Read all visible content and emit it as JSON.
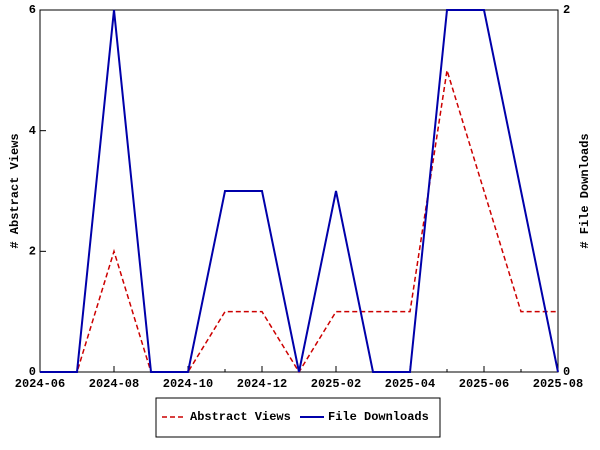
{
  "chart_data": {
    "type": "line",
    "x": [
      "2024-06",
      "2024-07",
      "2024-08",
      "2024-09",
      "2024-10",
      "2024-11",
      "2024-12",
      "2025-01",
      "2025-02",
      "2025-03",
      "2025-04",
      "2025-05",
      "2025-06",
      "2025-07",
      "2025-08"
    ],
    "xticks": [
      "2024-06",
      "2024-08",
      "2024-10",
      "2024-12",
      "2025-02",
      "2025-04",
      "2025-06",
      "2025-08"
    ],
    "ylabel": "# Abstract Views",
    "y2label": "# File Downloads",
    "ylim": [
      0,
      6
    ],
    "yticks": [
      0,
      2,
      4,
      6
    ],
    "y2lim": [
      0,
      2
    ],
    "y2ticks": [
      0,
      2
    ],
    "series": [
      {
        "name": "Abstract Views",
        "color": "#cc0000",
        "dash": true,
        "values": [
          0,
          0,
          2,
          0,
          0,
          1,
          1,
          0,
          1,
          1,
          1,
          5,
          3,
          1,
          1
        ]
      },
      {
        "name": "File Downloads",
        "color": "#0000aa",
        "axis": "y2",
        "values": [
          0,
          0,
          2,
          0,
          0,
          1,
          1,
          0,
          1,
          0,
          0,
          2,
          2,
          1,
          0
        ]
      }
    ]
  }
}
